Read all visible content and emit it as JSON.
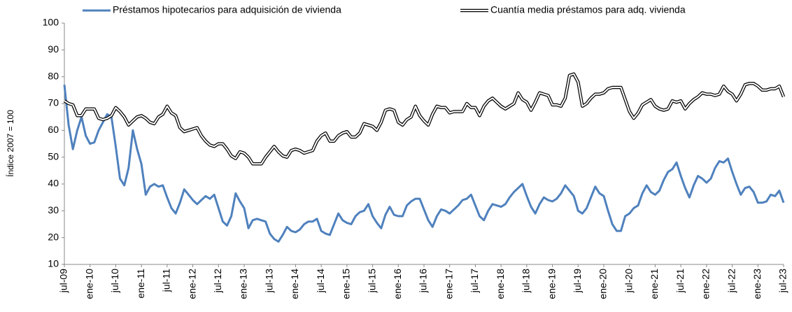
{
  "chart_data": {
    "type": "line",
    "y_label": "Índice 2007 = 100",
    "categories": [
      "jul-09",
      null,
      null,
      null,
      null,
      null,
      "ene-10",
      null,
      null,
      null,
      null,
      null,
      "jul-10",
      null,
      null,
      null,
      null,
      null,
      "ene-11",
      null,
      null,
      null,
      null,
      null,
      "jul-11",
      null,
      null,
      null,
      null,
      null,
      "ene-12",
      null,
      null,
      null,
      null,
      null,
      "jul-12",
      null,
      null,
      null,
      null,
      null,
      "ene-13",
      null,
      null,
      null,
      null,
      null,
      "jul-13",
      null,
      null,
      null,
      null,
      null,
      "ene-14",
      null,
      null,
      null,
      null,
      null,
      "jul-14",
      null,
      null,
      null,
      null,
      null,
      "ene-15",
      null,
      null,
      null,
      null,
      null,
      "jul-15",
      null,
      null,
      null,
      null,
      null,
      "ene-16",
      null,
      null,
      null,
      null,
      null,
      "jul-16",
      null,
      null,
      null,
      null,
      null,
      "ene-17",
      null,
      null,
      null,
      null,
      null,
      "jul-17",
      null,
      null,
      null,
      null,
      null,
      "ene-18",
      null,
      null,
      null,
      null,
      null,
      "jul-18",
      null,
      null,
      null,
      null,
      null,
      "ene-19",
      null,
      null,
      null,
      null,
      null,
      "jul-19",
      null,
      null,
      null,
      null,
      null,
      "ene-20",
      null,
      null,
      null,
      null,
      null,
      "jul-20",
      null,
      null,
      null,
      null,
      null,
      "ene-21",
      null,
      null,
      null,
      null,
      null,
      "jul-21",
      null,
      null,
      null,
      null,
      null,
      "ene-22",
      null,
      null,
      null,
      null,
      null,
      "jul-22",
      null,
      null,
      null,
      null,
      null,
      "ene-23",
      null,
      null,
      null,
      null,
      null,
      "jul-23"
    ],
    "series": [
      {
        "name": "Préstamos hipotecarios para adquisición de vivienda",
        "color": "#4f81bd",
        "style": "solid",
        "values": [
          77,
          62,
          53,
          60,
          65,
          58,
          55,
          55.5,
          60,
          63,
          66,
          65,
          54,
          42,
          39.5,
          46,
          60,
          53,
          47.5,
          36,
          39,
          40,
          39,
          39.5,
          35,
          31,
          29,
          33,
          38,
          36,
          34,
          32.5,
          34,
          35.5,
          34.5,
          36,
          31,
          26,
          24.5,
          28,
          36.5,
          33.5,
          31,
          23.5,
          26.5,
          27,
          26.5,
          26,
          21.5,
          19.5,
          18.5,
          21,
          24,
          22.5,
          22,
          23,
          25,
          26,
          26,
          27,
          22.5,
          21.5,
          21,
          25,
          29,
          26.5,
          25.5,
          25,
          28,
          29.5,
          30,
          32.5,
          28,
          25.5,
          23.5,
          28.5,
          31.5,
          28.5,
          28,
          28,
          32,
          33.5,
          34.5,
          34.5,
          30.5,
          26.5,
          24,
          28,
          30.5,
          30,
          29,
          30.5,
          32,
          34,
          34.5,
          36,
          32,
          28,
          26.5,
          30,
          32.5,
          32,
          31.5,
          32.5,
          35,
          37,
          38.5,
          40,
          35.5,
          31.5,
          29,
          32.5,
          35,
          34,
          33.5,
          34.5,
          36.5,
          39.5,
          37.5,
          35.5,
          30,
          29,
          31,
          35,
          39,
          36.5,
          35.5,
          30,
          25,
          22.5,
          22.5,
          28,
          29,
          31,
          32,
          36.5,
          39.5,
          37,
          36,
          37.5,
          41.5,
          44.5,
          45.5,
          48,
          43,
          38.5,
          35,
          39.5,
          43,
          42,
          40.5,
          42,
          46,
          48.5,
          48,
          49.5,
          44.5,
          40,
          36,
          38.5,
          39,
          37,
          33,
          33,
          33.5,
          36,
          35.5,
          37.5,
          33
        ]
      },
      {
        "name": "Cuantía media préstamos para adq. vivienda",
        "color": "#000000",
        "style": "double",
        "values": [
          71,
          70,
          69.5,
          65.5,
          65.5,
          68,
          68,
          68,
          64.5,
          64,
          64.5,
          65.5,
          68.5,
          67,
          65,
          62,
          63.5,
          65,
          65.5,
          64.5,
          63,
          62.5,
          65,
          66,
          69,
          66.5,
          65.5,
          61,
          59.5,
          60,
          60.5,
          61,
          58,
          56,
          54.5,
          54,
          55,
          55,
          53,
          50.5,
          49.5,
          52,
          51.5,
          50,
          47.5,
          47.5,
          47.5,
          50,
          52,
          54,
          52,
          50.5,
          50,
          52.5,
          53,
          52.5,
          51.5,
          52,
          52.5,
          56,
          58,
          59,
          56,
          56,
          58,
          59,
          59.5,
          57.5,
          57.5,
          59,
          62.5,
          62,
          61.5,
          60,
          63,
          67.5,
          68,
          67.5,
          63,
          62,
          64,
          65,
          69,
          65.5,
          63.5,
          62,
          66,
          69,
          68.5,
          68.5,
          66.5,
          67,
          67,
          67,
          70,
          68.5,
          68.5,
          65.5,
          69,
          71,
          72,
          70.5,
          69,
          68,
          69,
          70,
          74,
          71.5,
          70.5,
          67.5,
          70.5,
          74,
          73.5,
          73,
          69.5,
          69.5,
          69,
          72,
          80.5,
          81,
          78,
          69,
          70,
          72,
          73.5,
          73.5,
          74,
          75.5,
          76,
          76,
          76,
          71.5,
          67,
          64.5,
          66.5,
          69.5,
          70.5,
          71.5,
          69,
          68,
          67.5,
          68,
          71,
          70.5,
          71,
          68,
          70,
          71.5,
          72.5,
          74,
          73.5,
          73.5,
          73,
          73.5,
          76.5,
          74.5,
          73.5,
          71,
          73.5,
          77,
          77.5,
          77.5,
          76.5,
          75,
          75,
          75.5,
          75.5,
          76.5,
          72.5
        ]
      }
    ],
    "ylim": [
      10,
      100
    ],
    "yticks": [
      10,
      20,
      30,
      40,
      50,
      60,
      70,
      80,
      90,
      100
    ],
    "grid": false,
    "legend": "top"
  }
}
